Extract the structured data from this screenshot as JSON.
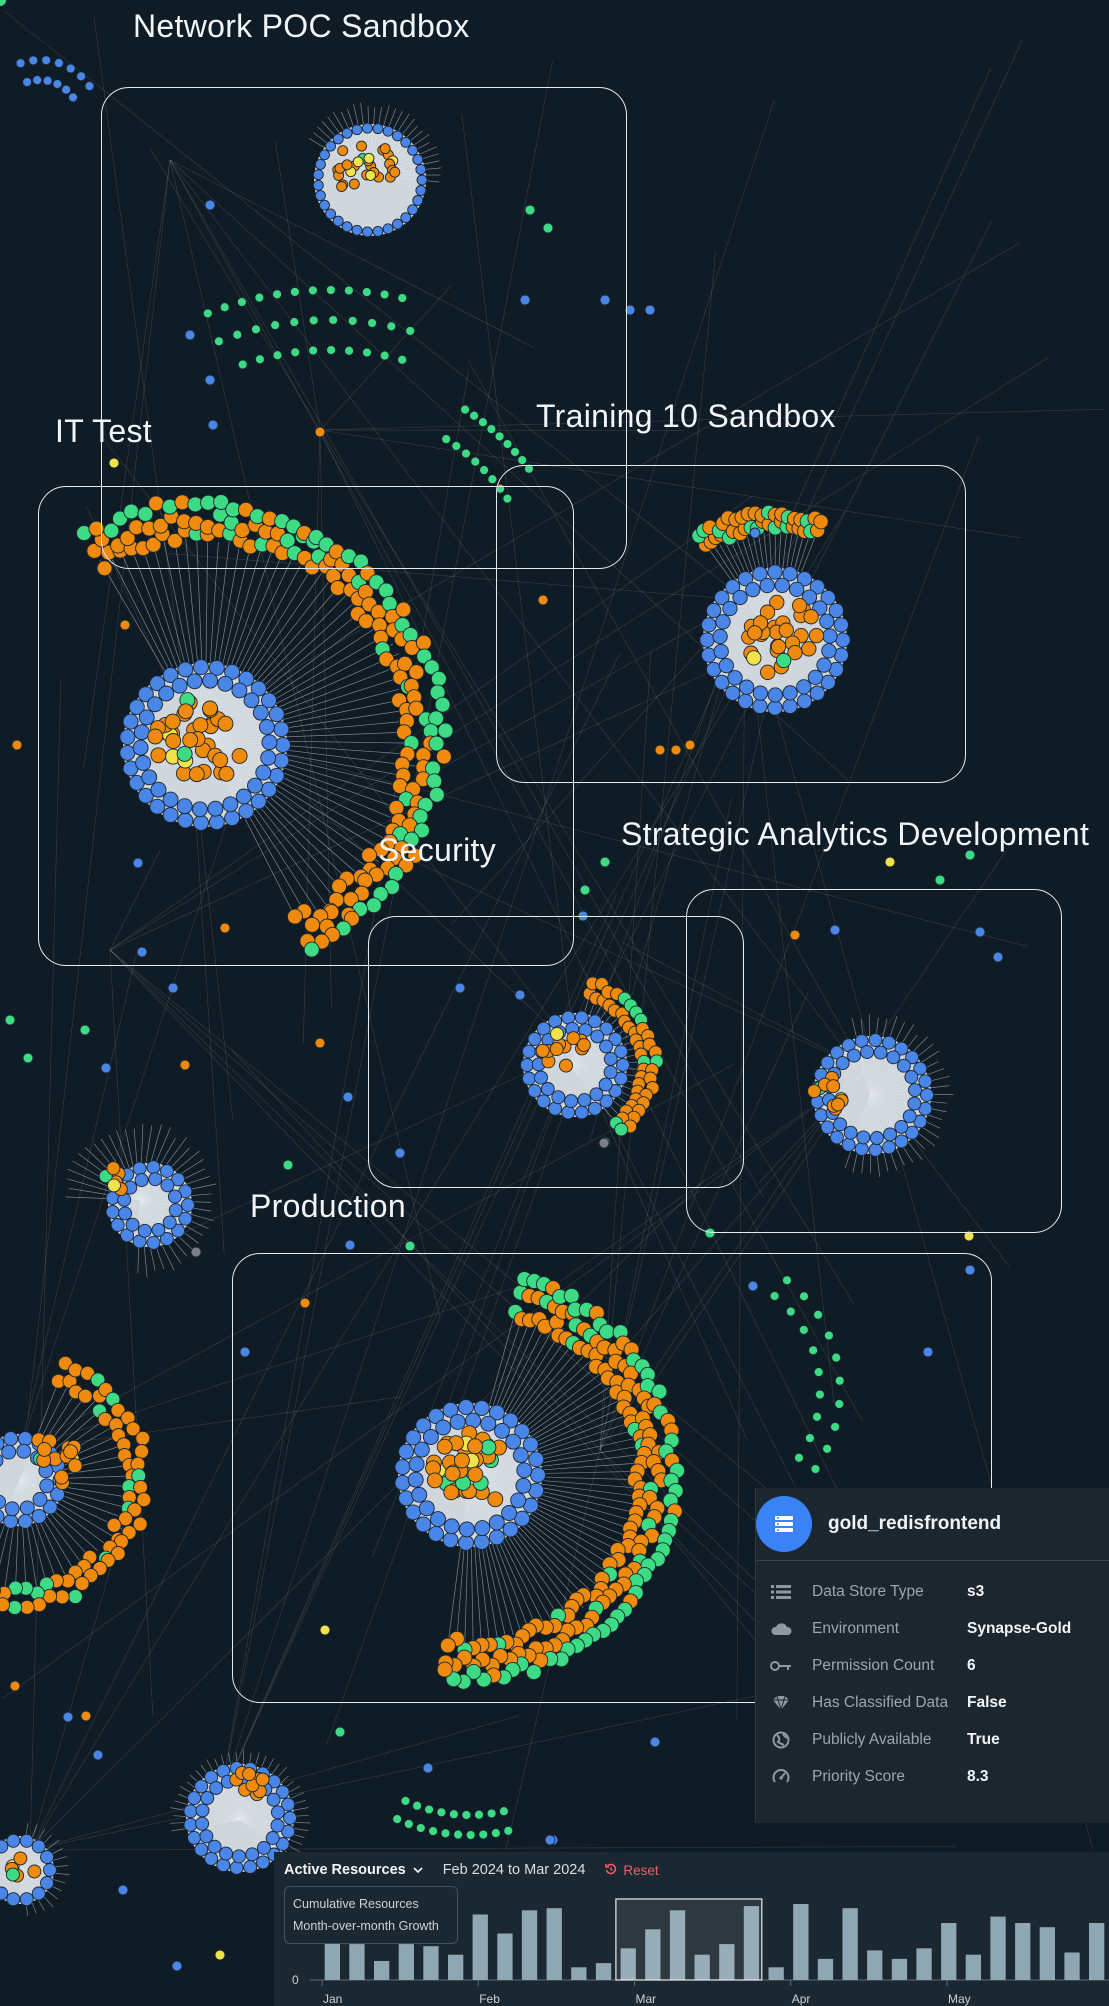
{
  "groups": [
    {
      "key": "network_poc",
      "label": "Network POC Sandbox"
    },
    {
      "key": "training10",
      "label": "Training 10 Sandbox"
    },
    {
      "key": "it_test",
      "label": "IT Test"
    },
    {
      "key": "security",
      "label": "Security"
    },
    {
      "key": "strategic",
      "label": "Strategic Analytics Development"
    },
    {
      "key": "production",
      "label": "Production"
    }
  ],
  "colors": {
    "background": "#0f1b25",
    "node_blue": "#4a86e8",
    "node_orange": "#f08a0c",
    "node_green": "#3ddc84",
    "node_yellow": "#f0e44a",
    "node_gray": "#7b8088",
    "edge": "#d8dde2",
    "accent_red": "#ef5f6b"
  },
  "detail": {
    "icon": "database-icon",
    "title": "gold_redisfrontend",
    "rows": [
      {
        "icon": "list-icon",
        "label": "Data Store Type",
        "value": "s3"
      },
      {
        "icon": "cloud-icon",
        "label": "Environment",
        "value": "Synapse-Gold"
      },
      {
        "icon": "key-icon",
        "label": "Permission Count",
        "value": "6"
      },
      {
        "icon": "gem-icon",
        "label": "Has Classified Data",
        "value": "False"
      },
      {
        "icon": "globe-icon",
        "label": "Publicly Available",
        "value": "True"
      },
      {
        "icon": "gauge-icon",
        "label": "Priority Score",
        "value": "8.3"
      }
    ]
  },
  "timeline": {
    "metric_label": "Active Resources",
    "range_label": "Feb 2024 to Mar 2024",
    "reset_label": "Reset",
    "menu_options": [
      "Cumulative Resources",
      "Month-over-month Growth"
    ],
    "chart_data": {
      "type": "bar",
      "ylim": [
        0,
        5
      ],
      "y_ticks": [
        "0"
      ],
      "x_tick_labels": [
        "Jan",
        "Feb",
        "Mar",
        "Apr",
        "May"
      ],
      "values": [
        1.8,
        1.7,
        0.9,
        1.7,
        1.6,
        1.2,
        3.1,
        2.2,
        3.3,
        3.4,
        0.6,
        0.8,
        1.5,
        2.4,
        3.3,
        1.2,
        1.7,
        3.5,
        0.6,
        3.6,
        1.0,
        3.4,
        1.4,
        1.0,
        1.5,
        2.7,
        1.2,
        3.0,
        2.7,
        2.5,
        1.3,
        2.7
      ],
      "selected_range": [
        12,
        17
      ]
    }
  }
}
